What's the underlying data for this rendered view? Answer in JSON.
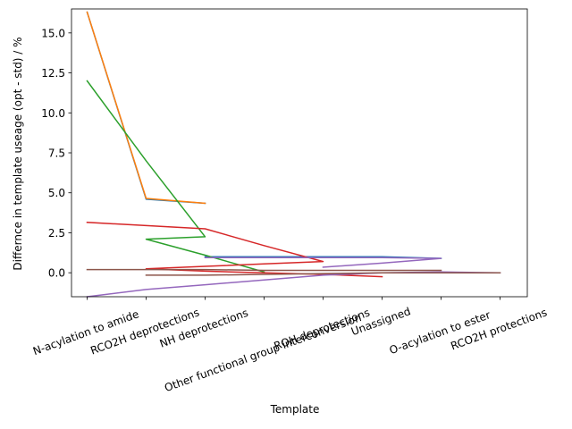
{
  "chart_data": {
    "type": "line",
    "title": "",
    "xlabel": "Template",
    "ylabel": "Differnce in template useage (opt - std) / %",
    "categories": [
      "N-acylation to amide",
      "RCO2H deprotections",
      "NH deprotections",
      "Other functional group interconversion",
      "ROH deprotections",
      "Unassigned",
      "O-acylation to ester",
      "RCO2H protections"
    ],
    "ylim": [
      -1.5,
      16.5
    ],
    "yticks": [
      0.0,
      2.5,
      5.0,
      7.5,
      10.0,
      12.5,
      15.0
    ],
    "ytick_labels": [
      "0.0",
      "2.5",
      "5.0",
      "7.5",
      "10.0",
      "12.5",
      "15.0"
    ],
    "grid": false,
    "series": [
      {
        "color": "#1f77b4",
        "points": [
          [
            0,
            16.3
          ],
          [
            1,
            4.6
          ],
          [
            2,
            4.35
          ]
        ]
      },
      {
        "color": "#1f77b4",
        "points": [
          [
            2,
            1.0
          ],
          [
            3,
            1.0
          ],
          [
            4,
            1.0
          ],
          [
            5,
            1.0
          ],
          [
            6,
            0.9
          ]
        ]
      },
      {
        "color": "#ff7f0e",
        "points": [
          [
            0,
            16.3
          ],
          [
            1,
            4.65
          ],
          [
            2,
            4.35
          ]
        ]
      },
      {
        "color": "#2ca02c",
        "points": [
          [
            0,
            12.0
          ],
          [
            1,
            7.0
          ],
          [
            2,
            2.25
          ],
          [
            1,
            2.1
          ],
          [
            2,
            1.1
          ],
          [
            3,
            0.05
          ]
        ]
      },
      {
        "color": "#d62728",
        "points": [
          [
            0,
            3.15
          ],
          [
            1,
            2.95
          ],
          [
            2,
            2.75
          ],
          [
            3,
            1.7
          ],
          [
            4,
            0.7
          ],
          [
            3,
            0.55
          ],
          [
            2,
            0.4
          ],
          [
            1,
            0.25
          ],
          [
            2,
            0.1
          ],
          [
            3,
            0.0
          ],
          [
            4,
            -0.1
          ],
          [
            5,
            -0.25
          ]
        ]
      },
      {
        "color": "#9467bd",
        "points": [
          [
            0,
            -1.5
          ],
          [
            1,
            -1.05
          ],
          [
            2,
            -0.75
          ],
          [
            3,
            -0.45
          ],
          [
            4,
            -0.15
          ],
          [
            5,
            0.0
          ],
          [
            6,
            0.05
          ],
          [
            7,
            0.0
          ]
        ]
      },
      {
        "color": "#9467bd",
        "points": [
          [
            2,
            0.95
          ],
          [
            3,
            0.95
          ],
          [
            4,
            0.95
          ],
          [
            5,
            0.95
          ],
          [
            6,
            0.9
          ],
          [
            5,
            0.6
          ],
          [
            4,
            0.35
          ]
        ]
      },
      {
        "color": "#8c564b",
        "points": [
          [
            0,
            0.2
          ],
          [
            1,
            0.2
          ],
          [
            2,
            0.2
          ],
          [
            3,
            0.15
          ],
          [
            4,
            0.15
          ],
          [
            5,
            0.15
          ],
          [
            6,
            0.15
          ]
        ]
      },
      {
        "color": "#8c564b",
        "points": [
          [
            1,
            -0.15
          ],
          [
            2,
            -0.15
          ],
          [
            3,
            -0.1
          ],
          [
            4,
            -0.05
          ],
          [
            5,
            0.0
          ],
          [
            6,
            0.0
          ],
          [
            7,
            0.0
          ]
        ]
      }
    ]
  }
}
